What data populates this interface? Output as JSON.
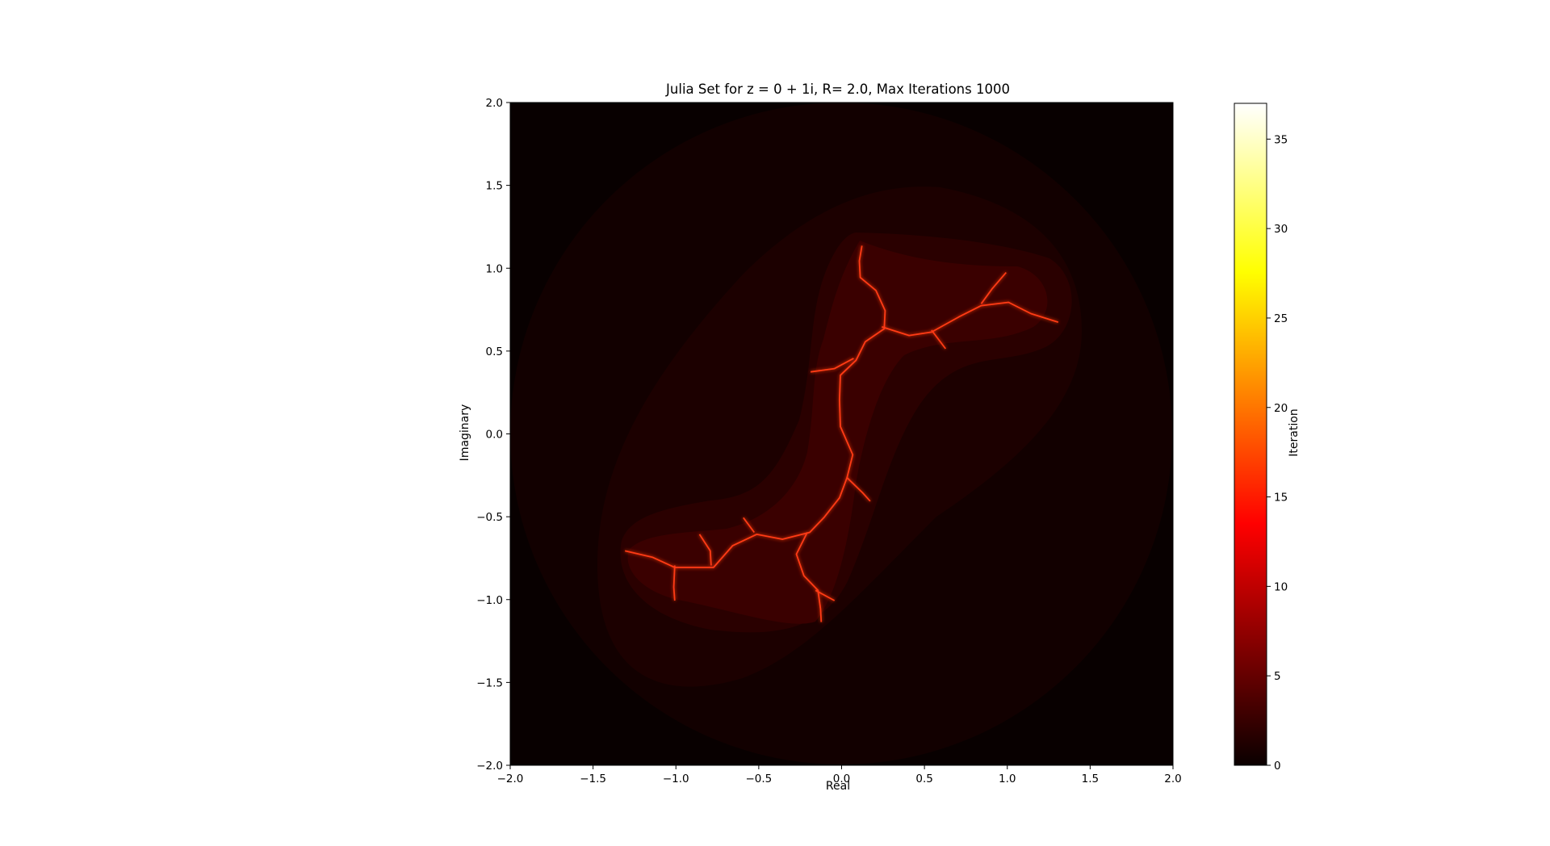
{
  "chart_data": {
    "type": "heatmap",
    "title": "Julia Set for z = 0 + 1i, R= 2.0, Max Iterations 1000",
    "xlabel": "Real",
    "ylabel": "Imaginary",
    "xlim": [
      -2.0,
      2.0
    ],
    "ylim": [
      -2.0,
      2.0
    ],
    "x_ticks": [
      "−2.0",
      "−1.5",
      "−1.0",
      "−0.5",
      "0.0",
      "0.5",
      "1.0",
      "1.5",
      "2.0"
    ],
    "y_ticks": [
      "−2.0",
      "−1.5",
      "−1.0",
      "−0.5",
      "0.0",
      "0.5",
      "1.0",
      "1.5",
      "2.0"
    ],
    "x_tick_values": [
      -2.0,
      -1.5,
      -1.0,
      -0.5,
      0.0,
      0.5,
      1.0,
      1.5,
      2.0
    ],
    "y_tick_values": [
      -2.0,
      -1.5,
      -1.0,
      -0.5,
      0.0,
      0.5,
      1.0,
      1.5,
      2.0
    ],
    "c_real": 0,
    "c_imag": 1,
    "escape_radius": 2.0,
    "max_iterations": 1000,
    "colormap": "hot",
    "colorbar": {
      "label": "Iteration",
      "min": 0,
      "max": 37,
      "ticks": [
        "0",
        "5",
        "10",
        "15",
        "20",
        "25",
        "30",
        "35"
      ],
      "tick_values": [
        0,
        5,
        10,
        15,
        20,
        25,
        30,
        35
      ]
    },
    "grid": false
  }
}
